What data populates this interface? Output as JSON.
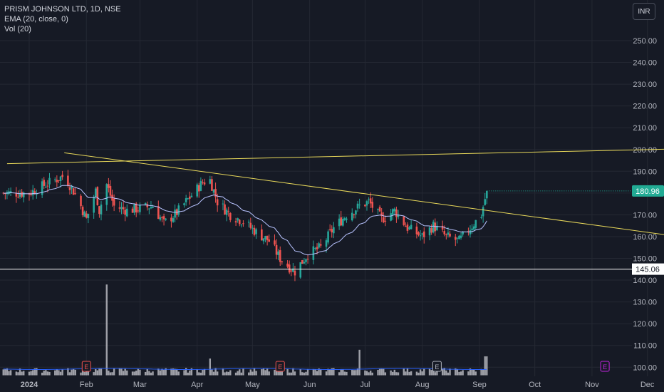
{
  "legend": {
    "symbol": "PRISM JOHNSON LTD, 1D, NSE",
    "ema": "EMA (20, close, 0)",
    "vol": "Vol (20)"
  },
  "currency_button": "INR",
  "colors": {
    "background": "#161a25",
    "grid": "#242833",
    "axis_text": "#b2b5be",
    "up": "#26a69a",
    "down": "#ef5350",
    "ema": "#b8c3ff",
    "trendline": "#e8d85a",
    "support": "#ffffff",
    "volume": "#b7b9c0",
    "volume_ma": "#2962ff",
    "price_tag": "#22ab94",
    "earnings_red": "#ef5350",
    "earnings_gray": "#b2b5be",
    "earnings_purple": "#c224e0"
  },
  "chart_data": {
    "type": "candlestick",
    "title": "PRISM JOHNSON LTD, 1D, NSE",
    "price_axis": {
      "ticks": [
        "250.00",
        "240.00",
        "230.00",
        "220.00",
        "210.00",
        "200.00",
        "190.00",
        "180.00",
        "170.00",
        "160.00",
        "150.00",
        "140.00",
        "130.00",
        "120.00",
        "110.00",
        "100.00"
      ],
      "range": [
        97,
        258
      ]
    },
    "time_axis": {
      "labels": [
        "2024",
        "Feb",
        "Mar",
        "Apr",
        "May",
        "Jun",
        "Jul",
        "Aug",
        "Sep",
        "Oct",
        "Nov",
        "Dec"
      ]
    },
    "last_price": "180.96",
    "horizontal_line": {
      "value": 145.06,
      "label": "145.06"
    },
    "trendlines": [
      {
        "name": "",
        "from": [
          "2023-12-20",
          193.5
        ],
        "to": [
          "2024-12-31",
          200.5
        ]
      },
      {
        "name": "",
        "from": [
          "2024-01-20",
          198.5
        ],
        "to": [
          "2024-12-31",
          158.5
        ]
      }
    ],
    "earnings_markers": [
      {
        "date": "2024-02-01",
        "label": "E",
        "style": "red"
      },
      {
        "date": "2024-05-16",
        "label": "E",
        "style": "red"
      },
      {
        "date": "2024-08-09",
        "label": "E",
        "style": "gray"
      },
      {
        "date": "2024-11-08",
        "label": "E",
        "style": "purple"
      }
    ],
    "price_waypoints": [
      [
        "2024-01-01",
        180
      ],
      [
        "2024-01-10",
        184
      ],
      [
        "2024-01-20",
        188
      ],
      [
        "2024-01-27",
        178
      ],
      [
        "2024-02-01",
        168
      ],
      [
        "2024-02-06",
        181
      ],
      [
        "2024-02-08",
        172
      ],
      [
        "2024-02-12",
        184
      ],
      [
        "2024-02-16",
        174
      ],
      [
        "2024-02-23",
        172
      ],
      [
        "2024-03-01",
        173
      ],
      [
        "2024-03-08",
        174
      ],
      [
        "2024-03-14",
        166
      ],
      [
        "2024-03-21",
        171
      ],
      [
        "2024-03-28",
        178
      ],
      [
        "2024-04-04",
        185
      ],
      [
        "2024-04-08",
        186
      ],
      [
        "2024-04-12",
        176
      ],
      [
        "2024-04-19",
        170
      ],
      [
        "2024-04-26",
        167
      ],
      [
        "2024-05-03",
        162
      ],
      [
        "2024-05-10",
        158
      ],
      [
        "2024-05-16",
        150
      ],
      [
        "2024-05-21",
        146
      ],
      [
        "2024-05-24",
        144
      ],
      [
        "2024-05-31",
        152
      ],
      [
        "2024-06-07",
        155
      ],
      [
        "2024-06-14",
        164
      ],
      [
        "2024-06-21",
        170
      ],
      [
        "2024-06-28",
        174
      ],
      [
        "2024-07-03",
        176
      ],
      [
        "2024-07-10",
        168
      ],
      [
        "2024-07-17",
        172
      ],
      [
        "2024-07-24",
        164
      ],
      [
        "2024-08-01",
        160
      ],
      [
        "2024-08-07",
        165
      ],
      [
        "2024-08-14",
        160
      ],
      [
        "2024-08-21",
        158
      ],
      [
        "2024-08-28",
        165
      ],
      [
        "2024-09-02",
        170
      ],
      [
        "2024-09-05",
        181
      ]
    ],
    "volume_spikes": [
      {
        "date": "2024-02-12",
        "value": 138
      },
      {
        "date": "2024-04-08",
        "value": 104
      },
      {
        "date": "2024-06-28",
        "value": 108
      },
      {
        "date": "2024-09-04",
        "value": 105
      },
      {
        "date": "2024-09-05",
        "value": 105
      }
    ]
  }
}
